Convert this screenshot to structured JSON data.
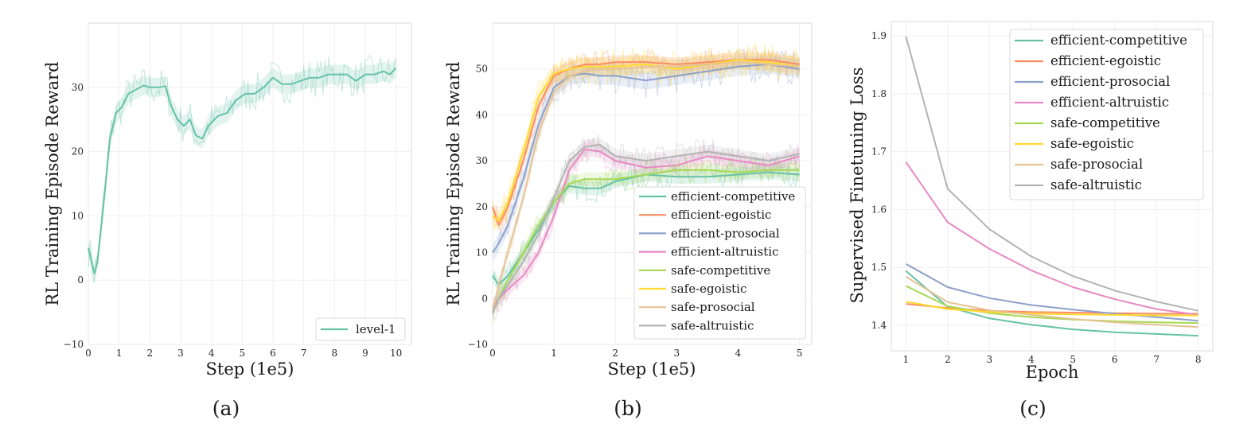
{
  "chart_data": [
    {
      "type": "line",
      "caption": "(a)",
      "xlabel": "Step (1e5)",
      "ylabel": "RL Training Episode Reward",
      "xlim": [
        0,
        10.5
      ],
      "ylim": [
        -10,
        40
      ],
      "xticks": [
        "0",
        "1",
        "2",
        "3",
        "4",
        "5",
        "6",
        "7",
        "8",
        "9",
        "10"
      ],
      "yticks": [
        "−10",
        "0",
        "10",
        "20",
        "30"
      ],
      "xtick_values": [
        0,
        1,
        2,
        3,
        4,
        5,
        6,
        7,
        8,
        9,
        10
      ],
      "ytick_values": [
        -10,
        0,
        10,
        20,
        30
      ],
      "grid": true,
      "legend_position": "lower-right",
      "series": [
        {
          "name": "level-1",
          "color": "#66c2a5",
          "x": [
            0,
            0.2,
            0.3,
            0.5,
            0.7,
            0.9,
            1.1,
            1.3,
            1.5,
            1.8,
            2.0,
            2.3,
            2.5,
            2.7,
            2.9,
            3.1,
            3.3,
            3.5,
            3.7,
            3.9,
            4.2,
            4.5,
            4.8,
            5.1,
            5.4,
            5.7,
            6.0,
            6.3,
            6.6,
            6.9,
            7.2,
            7.5,
            7.8,
            8.1,
            8.4,
            8.7,
            9.0,
            9.3,
            9.6,
            9.8,
            10.0
          ],
          "y": [
            5,
            1,
            3,
            12,
            22,
            26,
            27,
            29,
            29.5,
            30.3,
            30,
            30,
            30.2,
            27,
            25,
            24,
            25,
            22.5,
            22,
            24,
            25.5,
            26,
            28,
            29,
            29,
            30,
            31.5,
            30.5,
            30.5,
            31,
            31.5,
            31.5,
            32,
            32,
            32,
            31,
            32,
            32,
            32.5,
            32,
            33
          ],
          "band": 3
        }
      ]
    },
    {
      "type": "line",
      "caption": "(b)",
      "xlabel": "Step (1e5)",
      "ylabel": "RL Training Episode Reward",
      "xlim": [
        0,
        5.2
      ],
      "ylim": [
        -10,
        60
      ],
      "xticks": [
        "0",
        "1",
        "2",
        "3",
        "4",
        "5"
      ],
      "yticks": [
        "−10",
        "0",
        "10",
        "20",
        "30",
        "40",
        "50"
      ],
      "xtick_values": [
        0,
        1,
        2,
        3,
        4,
        5
      ],
      "ytick_values": [
        -10,
        0,
        10,
        20,
        30,
        40,
        50
      ],
      "grid": true,
      "legend_position": "lower-right",
      "x": [
        0,
        0.1,
        0.25,
        0.5,
        0.75,
        1.0,
        1.25,
        1.5,
        1.75,
        2.0,
        2.5,
        3.0,
        3.5,
        4.0,
        4.5,
        5.0
      ],
      "series": [
        {
          "name": "efficient-competitive",
          "color": "#66c2a5",
          "y": [
            5,
            3,
            5,
            10,
            15,
            21,
            24.5,
            24,
            24,
            25.5,
            27,
            26.5,
            26.5,
            27,
            27.5,
            27
          ],
          "band": 3
        },
        {
          "name": "efficient-egoistic",
          "color": "#fc8d62",
          "y": [
            20,
            16,
            20,
            30,
            42,
            48.5,
            50,
            51,
            51,
            51.5,
            51.5,
            51,
            51.5,
            52,
            52,
            51
          ],
          "band": 3
        },
        {
          "name": "efficient-prosocial",
          "color": "#8da0cb",
          "y": [
            10,
            12,
            16,
            26,
            38,
            46,
            48.5,
            49,
            48.5,
            48.5,
            47.5,
            48.5,
            49.5,
            50.5,
            51,
            50
          ],
          "band": 4
        },
        {
          "name": "efficient-altruistic",
          "color": "#e78ac3",
          "y": [
            -2,
            0,
            2,
            5,
            10,
            18,
            28,
            32.5,
            32,
            30,
            28.5,
            29,
            31,
            30,
            29,
            31
          ],
          "band": 3
        },
        {
          "name": "safe-competitive",
          "color": "#a6d854",
          "y": [
            -3,
            0,
            4,
            10,
            16,
            21,
            25,
            26,
            26,
            26,
            27,
            28,
            28,
            27.5,
            28,
            28
          ],
          "band": 3
        },
        {
          "name": "safe-egoistic",
          "color": "#ffd92f",
          "y": [
            18,
            17,
            21,
            32,
            44,
            49,
            50,
            50.5,
            50.5,
            50.5,
            51,
            50,
            51,
            52,
            51.5,
            50.5
          ],
          "band": 4
        },
        {
          "name": "safe-prosocial",
          "color": "#e5c494",
          "y": [
            -3,
            3,
            10,
            22,
            36,
            45,
            48.5,
            49.5,
            50,
            50,
            50.5,
            50.5,
            51,
            51.5,
            51,
            50.5
          ],
          "band": 3
        },
        {
          "name": "safe-altruistic",
          "color": "#b3b3b3",
          "y": [
            -3,
            0,
            3,
            8,
            14,
            22,
            30,
            33,
            33.5,
            31,
            30,
            31,
            32,
            31,
            30,
            31.5
          ],
          "band": 3
        }
      ]
    },
    {
      "type": "line",
      "caption": "(c)",
      "xlabel": "Epoch",
      "ylabel": "Supervised Finetuning Loss",
      "xlim": [
        0.65,
        8.35
      ],
      "ylim": [
        1.356,
        1.925
      ],
      "xticks": [
        "1",
        "2",
        "3",
        "4",
        "5",
        "6",
        "7",
        "8"
      ],
      "yticks": [
        "1.4",
        "1.5",
        "1.6",
        "1.7",
        "1.8",
        "1.9"
      ],
      "xtick_values": [
        1,
        2,
        3,
        4,
        5,
        6,
        7,
        8
      ],
      "ytick_values": [
        1.4,
        1.5,
        1.6,
        1.7,
        1.8,
        1.9
      ],
      "grid": true,
      "legend_position": "upper-right",
      "x": [
        1,
        2,
        3,
        4,
        5,
        6,
        7,
        8
      ],
      "series": [
        {
          "name": "efficient-competitive",
          "color": "#66c2a5",
          "y": [
            1.494,
            1.432,
            1.412,
            1.401,
            1.393,
            1.388,
            1.385,
            1.382
          ]
        },
        {
          "name": "efficient-egoistic",
          "color": "#fc8d62",
          "y": [
            1.437,
            1.43,
            1.425,
            1.423,
            1.422,
            1.421,
            1.42,
            1.42
          ]
        },
        {
          "name": "efficient-prosocial",
          "color": "#8da0cb",
          "y": [
            1.506,
            1.466,
            1.447,
            1.435,
            1.427,
            1.42,
            1.414,
            1.408
          ]
        },
        {
          "name": "efficient-altruistic",
          "color": "#e78ac3",
          "y": [
            1.682,
            1.578,
            1.532,
            1.495,
            1.466,
            1.445,
            1.428,
            1.418
          ]
        },
        {
          "name": "safe-competitive",
          "color": "#a6d854",
          "y": [
            1.468,
            1.433,
            1.421,
            1.414,
            1.41,
            1.407,
            1.405,
            1.404
          ]
        },
        {
          "name": "safe-egoistic",
          "color": "#ffd92f",
          "y": [
            1.441,
            1.428,
            1.423,
            1.42,
            1.419,
            1.418,
            1.417,
            1.417
          ]
        },
        {
          "name": "safe-prosocial",
          "color": "#e5c494",
          "y": [
            1.484,
            1.44,
            1.426,
            1.418,
            1.411,
            1.405,
            1.401,
            1.397
          ]
        },
        {
          "name": "safe-altruistic",
          "color": "#b3b3b3",
          "y": [
            1.899,
            1.636,
            1.566,
            1.519,
            1.485,
            1.46,
            1.441,
            1.425
          ]
        }
      ]
    }
  ]
}
